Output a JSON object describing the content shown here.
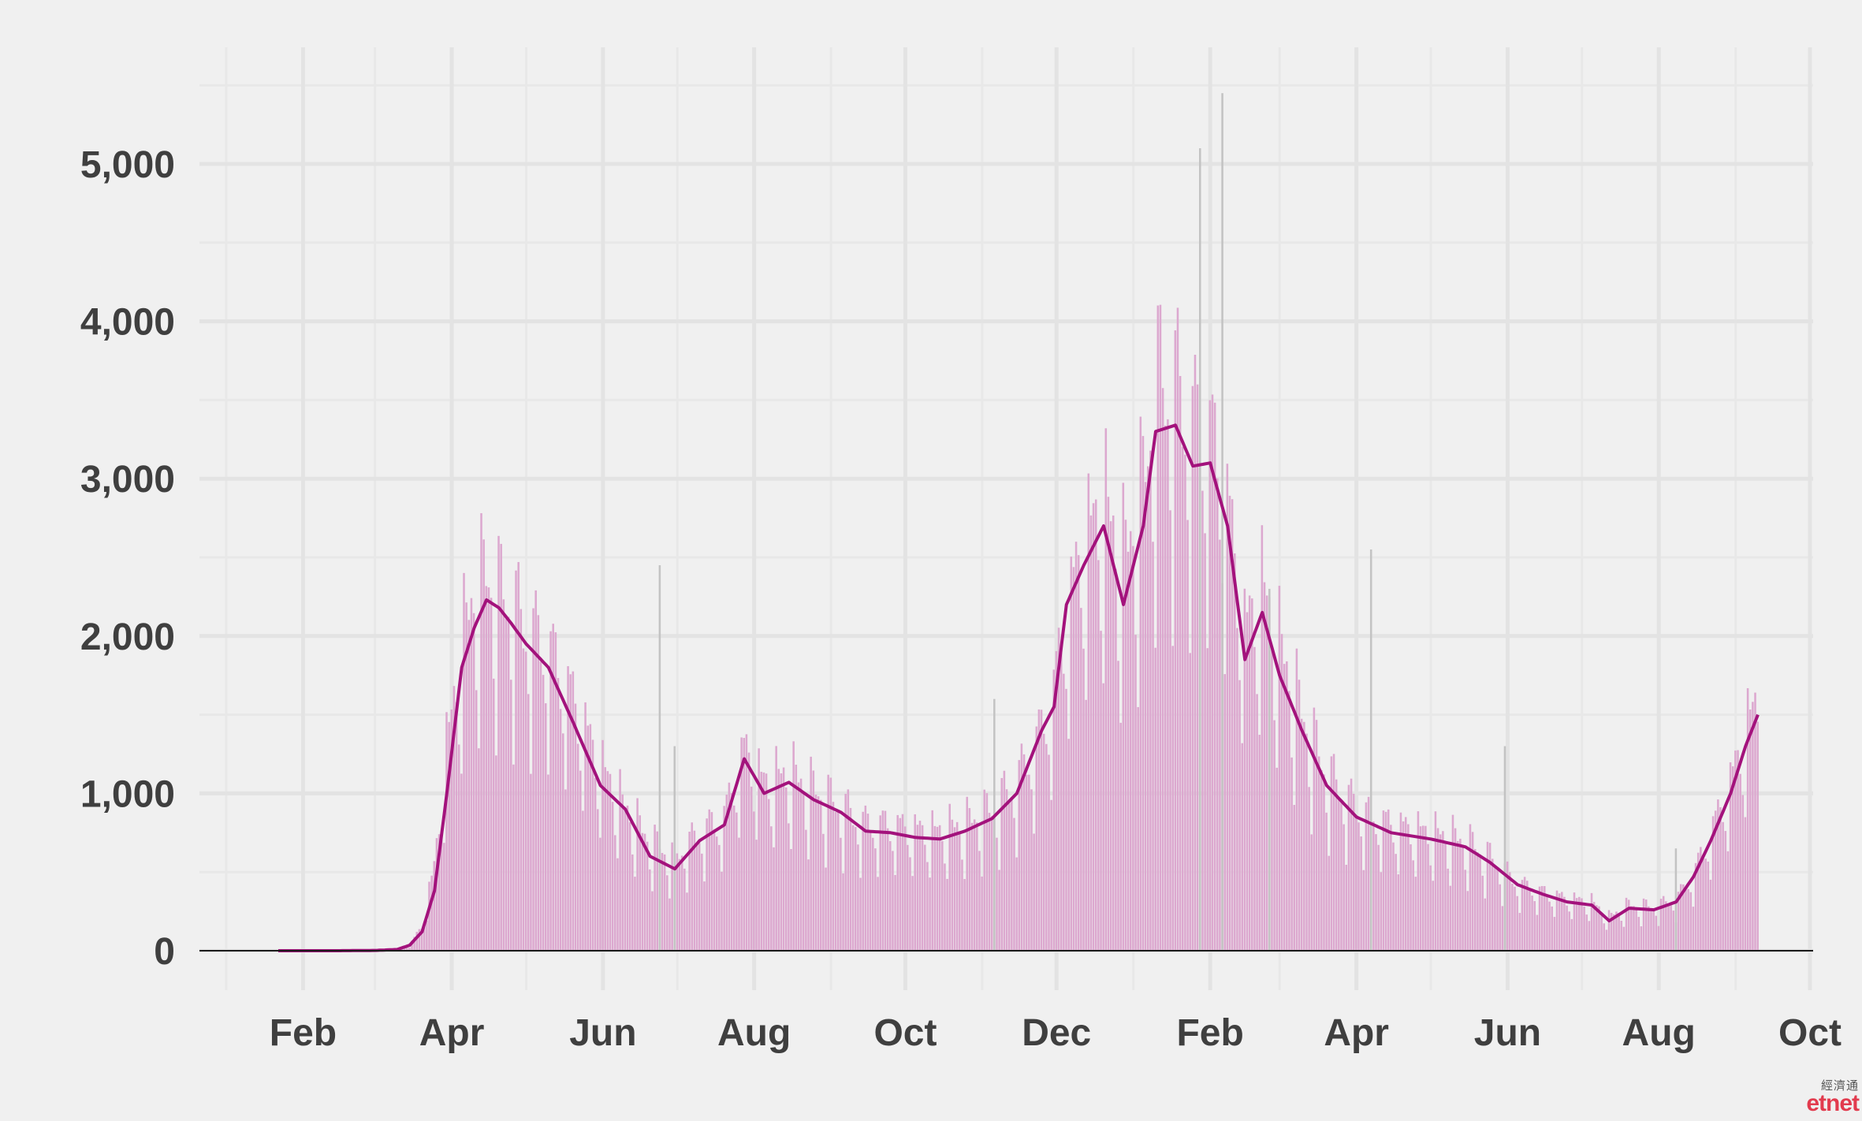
{
  "chart_data": {
    "type": "bar",
    "subtype": "daily bars with 7-day moving average line",
    "title": "",
    "xlabel": "",
    "ylabel": "",
    "ylim": [
      0,
      5700
    ],
    "y_ticks": [
      0,
      1000,
      2000,
      3000,
      4000,
      5000
    ],
    "y_tick_labels": [
      "0",
      "1,000",
      "2,000",
      "3,000",
      "4,000",
      "5,000"
    ],
    "x_range": [
      "2020-01-01",
      "2021-10-01"
    ],
    "x_ticks": [
      {
        "date": "2020-02-01",
        "label": "Feb"
      },
      {
        "date": "2020-04-01",
        "label": "Apr"
      },
      {
        "date": "2020-06-01",
        "label": "Jun"
      },
      {
        "date": "2020-08-01",
        "label": "Aug"
      },
      {
        "date": "2020-10-01",
        "label": "Oct"
      },
      {
        "date": "2020-12-01",
        "label": "Dec"
      },
      {
        "date": "2021-02-01",
        "label": "Feb"
      },
      {
        "date": "2021-04-01",
        "label": "Apr"
      },
      {
        "date": "2021-06-01",
        "label": "Jun"
      },
      {
        "date": "2021-08-01",
        "label": "Aug"
      },
      {
        "date": "2021-10-01",
        "label": "Oct"
      }
    ],
    "grid": true,
    "bar_color": "#dca8cf",
    "outlier_bar_color": "#c3c3c3",
    "line_color": "#a3127c",
    "series": [
      {
        "kind": "bars",
        "points": [
          [
            "2020-01-22",
            0
          ],
          [
            "2020-02-15",
            0
          ],
          [
            "2020-03-01",
            1
          ],
          [
            "2020-03-10",
            5
          ],
          [
            "2020-03-15",
            30
          ],
          [
            "2020-03-20",
            150
          ],
          [
            "2020-03-25",
            500
          ],
          [
            "2020-03-30",
            1200
          ],
          [
            "2020-04-05",
            1800
          ],
          [
            "2020-04-10",
            2100
          ],
          [
            "2020-04-15",
            2200
          ],
          [
            "2020-04-20",
            2100
          ],
          [
            "2020-04-25",
            2050
          ],
          [
            "2020-05-01",
            1900
          ],
          [
            "2020-05-10",
            1800
          ],
          [
            "2020-05-20",
            1500
          ],
          [
            "2020-05-31",
            1100
          ],
          [
            "2020-06-10",
            850
          ],
          [
            "2020-06-20",
            650
          ],
          [
            "2020-06-30",
            550
          ],
          [
            "2020-07-10",
            700
          ],
          [
            "2020-07-20",
            800
          ],
          [
            "2020-07-28",
            1200
          ],
          [
            "2020-08-05",
            1000
          ],
          [
            "2020-08-15",
            1050
          ],
          [
            "2020-08-25",
            950
          ],
          [
            "2020-09-05",
            850
          ],
          [
            "2020-09-15",
            750
          ],
          [
            "2020-09-25",
            750
          ],
          [
            "2020-10-05",
            720
          ],
          [
            "2020-10-15",
            710
          ],
          [
            "2020-10-25",
            750
          ],
          [
            "2020-11-05",
            830
          ],
          [
            "2020-11-15",
            1000
          ],
          [
            "2020-11-25",
            1300
          ],
          [
            "2020-11-30",
            1550
          ],
          [
            "2020-12-05",
            2000
          ],
          [
            "2020-12-12",
            2400
          ],
          [
            "2020-12-20",
            2650
          ],
          [
            "2020-12-28",
            2300
          ],
          [
            "2021-01-05",
            2700
          ],
          [
            "2021-01-10",
            3300
          ],
          [
            "2021-01-18",
            3300
          ],
          [
            "2021-01-25",
            3100
          ],
          [
            "2021-02-01",
            3050
          ],
          [
            "2021-02-08",
            2650
          ],
          [
            "2021-02-15",
            1900
          ],
          [
            "2021-02-22",
            2150
          ],
          [
            "2021-03-01",
            1800
          ],
          [
            "2021-03-10",
            1400
          ],
          [
            "2021-03-20",
            1050
          ],
          [
            "2021-04-01",
            850
          ],
          [
            "2021-04-15",
            750
          ],
          [
            "2021-05-01",
            700
          ],
          [
            "2021-05-15",
            650
          ],
          [
            "2021-05-25",
            550
          ],
          [
            "2021-06-05",
            400
          ],
          [
            "2021-06-15",
            350
          ],
          [
            "2021-06-25",
            310
          ],
          [
            "2021-07-05",
            290
          ],
          [
            "2021-07-12",
            200
          ],
          [
            "2021-07-20",
            270
          ],
          [
            "2021-07-30",
            260
          ],
          [
            "2021-08-08",
            300
          ],
          [
            "2021-08-15",
            450
          ],
          [
            "2021-08-22",
            700
          ],
          [
            "2021-08-30",
            1000
          ],
          [
            "2021-09-05",
            1300
          ],
          [
            "2021-09-10",
            1500
          ]
        ]
      },
      {
        "kind": "line",
        "points": [
          [
            "2020-01-22",
            0
          ],
          [
            "2020-02-15",
            0
          ],
          [
            "2020-03-01",
            2
          ],
          [
            "2020-03-10",
            8
          ],
          [
            "2020-03-15",
            35
          ],
          [
            "2020-03-20",
            120
          ],
          [
            "2020-03-25",
            380
          ],
          [
            "2020-03-30",
            1000
          ],
          [
            "2020-04-05",
            1800
          ],
          [
            "2020-04-10",
            2050
          ],
          [
            "2020-04-15",
            2230
          ],
          [
            "2020-04-20",
            2180
          ],
          [
            "2020-04-25",
            2080
          ],
          [
            "2020-05-01",
            1950
          ],
          [
            "2020-05-10",
            1800
          ],
          [
            "2020-05-20",
            1450
          ],
          [
            "2020-05-31",
            1050
          ],
          [
            "2020-06-10",
            900
          ],
          [
            "2020-06-20",
            600
          ],
          [
            "2020-06-30",
            520
          ],
          [
            "2020-07-10",
            700
          ],
          [
            "2020-07-20",
            800
          ],
          [
            "2020-07-28",
            1220
          ],
          [
            "2020-08-05",
            1000
          ],
          [
            "2020-08-15",
            1070
          ],
          [
            "2020-08-25",
            960
          ],
          [
            "2020-09-05",
            880
          ],
          [
            "2020-09-15",
            760
          ],
          [
            "2020-09-25",
            750
          ],
          [
            "2020-10-05",
            720
          ],
          [
            "2020-10-15",
            710
          ],
          [
            "2020-10-25",
            760
          ],
          [
            "2020-11-05",
            840
          ],
          [
            "2020-11-15",
            1000
          ],
          [
            "2020-11-25",
            1400
          ],
          [
            "2020-11-30",
            1550
          ],
          [
            "2020-12-05",
            2200
          ],
          [
            "2020-12-12",
            2450
          ],
          [
            "2020-12-20",
            2700
          ],
          [
            "2020-12-28",
            2200
          ],
          [
            "2021-01-05",
            2700
          ],
          [
            "2021-01-10",
            3300
          ],
          [
            "2021-01-18",
            3340
          ],
          [
            "2021-01-25",
            3080
          ],
          [
            "2021-02-01",
            3100
          ],
          [
            "2021-02-08",
            2700
          ],
          [
            "2021-02-15",
            1850
          ],
          [
            "2021-02-22",
            2150
          ],
          [
            "2021-03-01",
            1750
          ],
          [
            "2021-03-10",
            1400
          ],
          [
            "2021-03-20",
            1050
          ],
          [
            "2021-04-01",
            850
          ],
          [
            "2021-04-15",
            750
          ],
          [
            "2021-05-01",
            710
          ],
          [
            "2021-05-15",
            660
          ],
          [
            "2021-05-25",
            560
          ],
          [
            "2021-06-05",
            420
          ],
          [
            "2021-06-15",
            360
          ],
          [
            "2021-06-25",
            310
          ],
          [
            "2021-07-05",
            290
          ],
          [
            "2021-07-12",
            190
          ],
          [
            "2021-07-20",
            270
          ],
          [
            "2021-07-30",
            260
          ],
          [
            "2021-08-08",
            310
          ],
          [
            "2021-08-15",
            470
          ],
          [
            "2021-08-22",
            700
          ],
          [
            "2021-08-30",
            1000
          ],
          [
            "2021-09-05",
            1300
          ],
          [
            "2021-09-10",
            1500
          ]
        ]
      }
    ],
    "outlier_bars": [
      [
        "2020-06-24",
        2450
      ],
      [
        "2020-06-30",
        1300
      ],
      [
        "2020-11-06",
        1600
      ],
      [
        "2021-01-28",
        5100
      ],
      [
        "2021-02-06",
        5450
      ],
      [
        "2021-02-25",
        2300
      ],
      [
        "2021-04-07",
        2550
      ],
      [
        "2021-05-31",
        1300
      ],
      [
        "2021-08-08",
        650
      ]
    ]
  },
  "watermark": {
    "cjk": "經濟通",
    "latin": "etnet"
  }
}
